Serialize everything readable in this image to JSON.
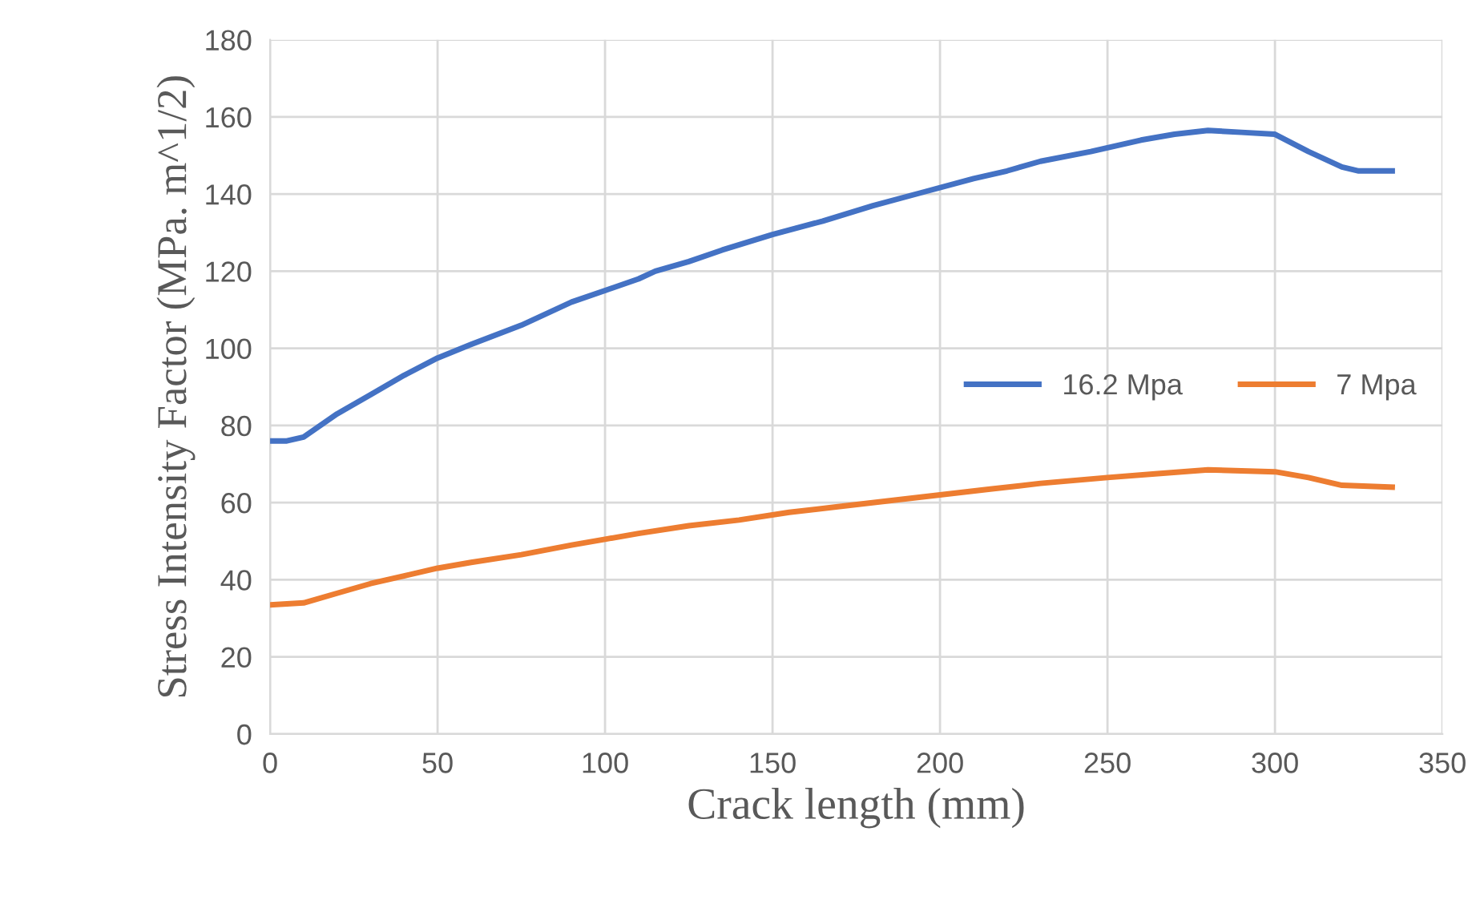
{
  "chart_data": {
    "type": "line",
    "xlabel": "Crack length (mm)",
    "ylabel": "Stress Intensity Factor (MPa. m^1/2)",
    "xlim": [
      0,
      350
    ],
    "xticks": [
      0,
      50,
      100,
      150,
      200,
      250,
      300,
      350
    ],
    "ylim": [
      0,
      180
    ],
    "yticks": [
      0,
      20,
      40,
      60,
      80,
      100,
      120,
      140,
      160,
      180
    ],
    "grid": true,
    "legend": "right",
    "marker": "none",
    "line_style": "solid",
    "series": [
      {
        "name": "16.2 Mpa",
        "color": "#4472c4",
        "x": [
          0,
          5,
          10,
          15,
          20,
          30,
          40,
          50,
          60,
          75,
          90,
          100,
          110,
          115,
          125,
          135,
          150,
          165,
          180,
          195,
          210,
          220,
          230,
          245,
          260,
          270,
          280,
          290,
          300,
          310,
          320,
          325,
          335
        ],
        "values": [
          76,
          76,
          77,
          80,
          83,
          88,
          93,
          97.5,
          101,
          106,
          112,
          115,
          118,
          120,
          122.5,
          125.5,
          129.5,
          133,
          137,
          140.5,
          144,
          146,
          148.5,
          151,
          154,
          155.5,
          156.5,
          156,
          155.5,
          151,
          147,
          146,
          146
        ]
      },
      {
        "name": "7 Mpa",
        "color": "#ed7d31",
        "x": [
          0,
          10,
          20,
          30,
          40,
          50,
          60,
          75,
          90,
          100,
          110,
          125,
          140,
          155,
          170,
          185,
          200,
          215,
          230,
          250,
          265,
          280,
          300,
          310,
          320,
          335
        ],
        "values": [
          33.5,
          34,
          36.5,
          39,
          41,
          43,
          44.5,
          46.5,
          49,
          50.5,
          52,
          54,
          55.5,
          57.5,
          59,
          60.5,
          62,
          63.5,
          65,
          66.5,
          67.5,
          68.5,
          68,
          66.5,
          64.5,
          64
        ]
      }
    ]
  }
}
